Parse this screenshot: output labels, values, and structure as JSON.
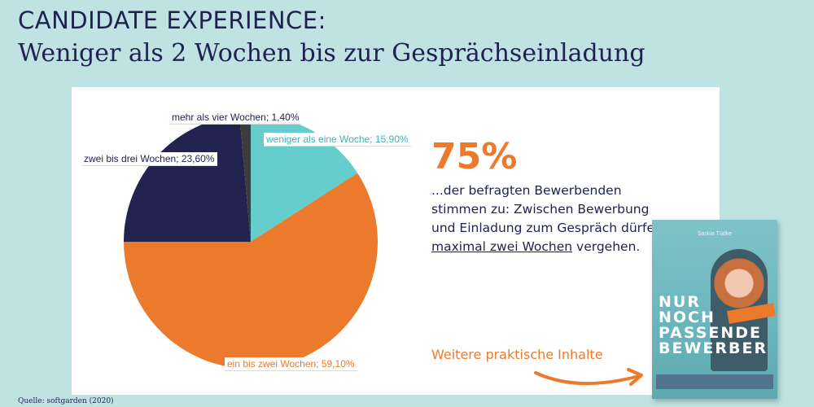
{
  "header": {
    "title": "CANDIDATE EXPERIENCE:",
    "subtitle": "Weniger als 2 Wochen bis zur Gesprächseinladung"
  },
  "chart_data": {
    "type": "pie",
    "slices": [
      {
        "label": "weniger als eine Woche",
        "value": 15.9,
        "display": "weniger als eine Woche; 15,90%",
        "color": "#65cdcb"
      },
      {
        "label": "ein bis zwei Wochen",
        "value": 59.1,
        "display": "ein bis zwei Wochen; 59,10%",
        "color": "#ec7a2c"
      },
      {
        "label": "zwei bis drei Wochen",
        "value": 23.6,
        "display": "zwei bis drei Wochen; 23,60%",
        "color": "#23234f"
      },
      {
        "label": "mehr als vier Wochen",
        "value": 1.4,
        "display": "mehr als vier Wochen; 1,40%",
        "color": "#3c3c3c"
      }
    ]
  },
  "stat": {
    "value": "75%",
    "text_1": "...der befragten Bewerbenden stimmen zu: Zwischen Bewerbung und Einladung zum Gespräch dürfen ",
    "text_highlight": "maximal zwei Wochen",
    "text_2": " vergehen."
  },
  "promo": {
    "label": "Weitere praktische Inhalte",
    "book_author": "Saskia Tüdke",
    "book_title": [
      "NUR",
      "NOCH",
      "PASSENDE",
      "BEWERBER"
    ]
  },
  "source": "Quelle: softgarden (2020)",
  "colors": {
    "background": "#bfe3e3",
    "navy": "#1f2150",
    "accent": "#ec7a2c",
    "teal": "#65cdcb"
  }
}
